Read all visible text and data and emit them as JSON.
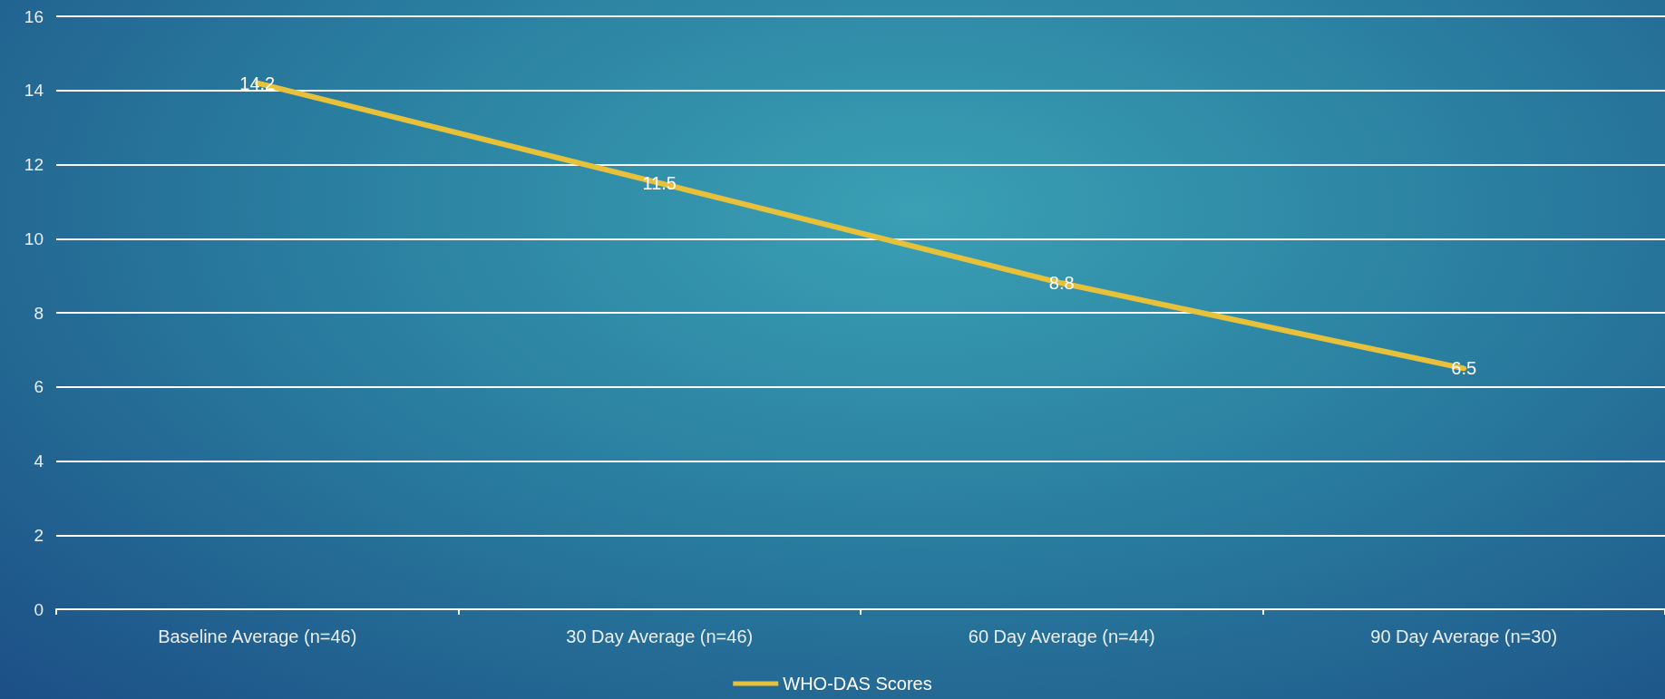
{
  "chart_data": {
    "type": "line",
    "categories": [
      "Baseline Average (n=46)",
      "30 Day Average (n=46)",
      "60 Day Average (n=44)",
      "90 Day Average (n=30)"
    ],
    "series": [
      {
        "name": "WHO-DAS Scores",
        "color": "#e8c13a",
        "values": [
          14.2,
          11.5,
          8.8,
          6.5
        ]
      }
    ],
    "ylim": [
      0,
      16
    ],
    "yticks": [
      0,
      2,
      4,
      6,
      8,
      10,
      12,
      14,
      16
    ],
    "grid": "y",
    "legend": "bottom",
    "data_labels": true,
    "marker": "none",
    "line_style": "solid"
  }
}
